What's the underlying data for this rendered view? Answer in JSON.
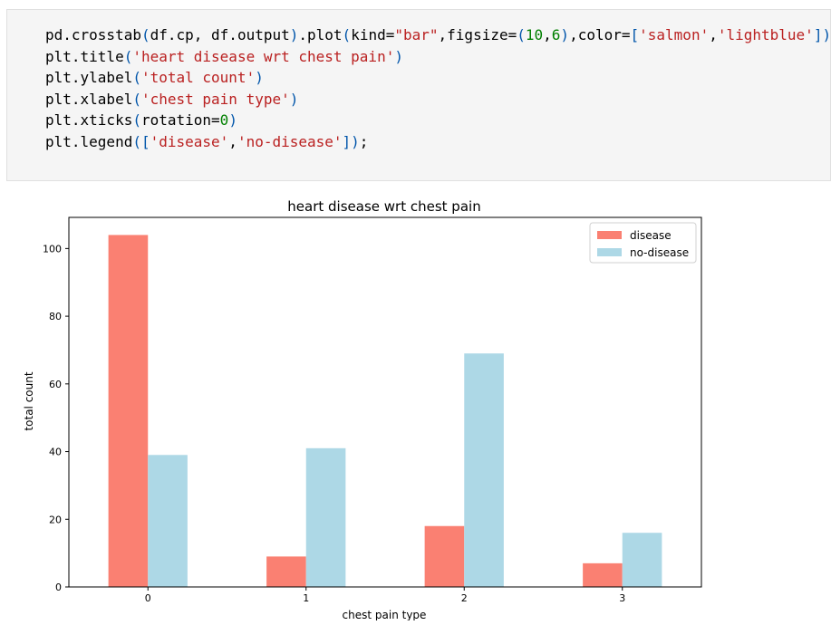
{
  "code_cell": {
    "lines": [
      [
        {
          "t": "pd.crosstab",
          "c": "name"
        },
        {
          "t": "(",
          "c": "par"
        },
        {
          "t": "df.cp, df.output",
          "c": "name"
        },
        {
          "t": ")",
          "c": "par"
        },
        {
          "t": ".plot",
          "c": "name"
        },
        {
          "t": "(",
          "c": "par"
        },
        {
          "t": "kind=",
          "c": "name"
        },
        {
          "t": "\"bar\"",
          "c": "str"
        },
        {
          "t": ",figsize=",
          "c": "name"
        },
        {
          "t": "(",
          "c": "par"
        },
        {
          "t": "10",
          "c": "num"
        },
        {
          "t": ",",
          "c": "op"
        },
        {
          "t": "6",
          "c": "num"
        },
        {
          "t": ")",
          "c": "par"
        },
        {
          "t": ",color=",
          "c": "name"
        },
        {
          "t": "[",
          "c": "par"
        },
        {
          "t": "'salmon'",
          "c": "str"
        },
        {
          "t": ",",
          "c": "op"
        },
        {
          "t": "'lightblue'",
          "c": "str"
        },
        {
          "t": "])",
          "c": "par"
        }
      ],
      [
        {
          "t": "plt.title",
          "c": "name"
        },
        {
          "t": "(",
          "c": "par"
        },
        {
          "t": "'heart disease wrt chest pain'",
          "c": "str"
        },
        {
          "t": ")",
          "c": "par"
        }
      ],
      [
        {
          "t": "plt.ylabel",
          "c": "name"
        },
        {
          "t": "(",
          "c": "par"
        },
        {
          "t": "'total count'",
          "c": "str"
        },
        {
          "t": ")",
          "c": "par"
        }
      ],
      [
        {
          "t": "plt.xlabel",
          "c": "name"
        },
        {
          "t": "(",
          "c": "par"
        },
        {
          "t": "'chest pain type'",
          "c": "str"
        },
        {
          "t": ")",
          "c": "par"
        }
      ],
      [
        {
          "t": "plt.xticks",
          "c": "name"
        },
        {
          "t": "(",
          "c": "par"
        },
        {
          "t": "rotation=",
          "c": "name"
        },
        {
          "t": "0",
          "c": "num"
        },
        {
          "t": ")",
          "c": "par"
        }
      ],
      [
        {
          "t": "plt.legend",
          "c": "name"
        },
        {
          "t": "([",
          "c": "par"
        },
        {
          "t": "'disease'",
          "c": "str"
        },
        {
          "t": ",",
          "c": "op"
        },
        {
          "t": "'no-disease'",
          "c": "str"
        },
        {
          "t": "])",
          "c": "par"
        },
        {
          "t": ";",
          "c": "op"
        }
      ]
    ]
  },
  "chart_data": {
    "type": "bar",
    "title": "heart disease wrt chest pain",
    "xlabel": "chest pain type",
    "ylabel": "total count",
    "categories": [
      "0",
      "1",
      "2",
      "3"
    ],
    "series": [
      {
        "name": "disease",
        "values": [
          104,
          9,
          18,
          7
        ],
        "color": "#fa8072"
      },
      {
        "name": "no-disease",
        "values": [
          39,
          41,
          69,
          16
        ],
        "color": "#add8e6"
      }
    ],
    "ylim": [
      0,
      109.2
    ],
    "yticks": [
      0,
      20,
      40,
      60,
      80,
      100
    ],
    "grid": false,
    "legend_position": "top-right"
  }
}
